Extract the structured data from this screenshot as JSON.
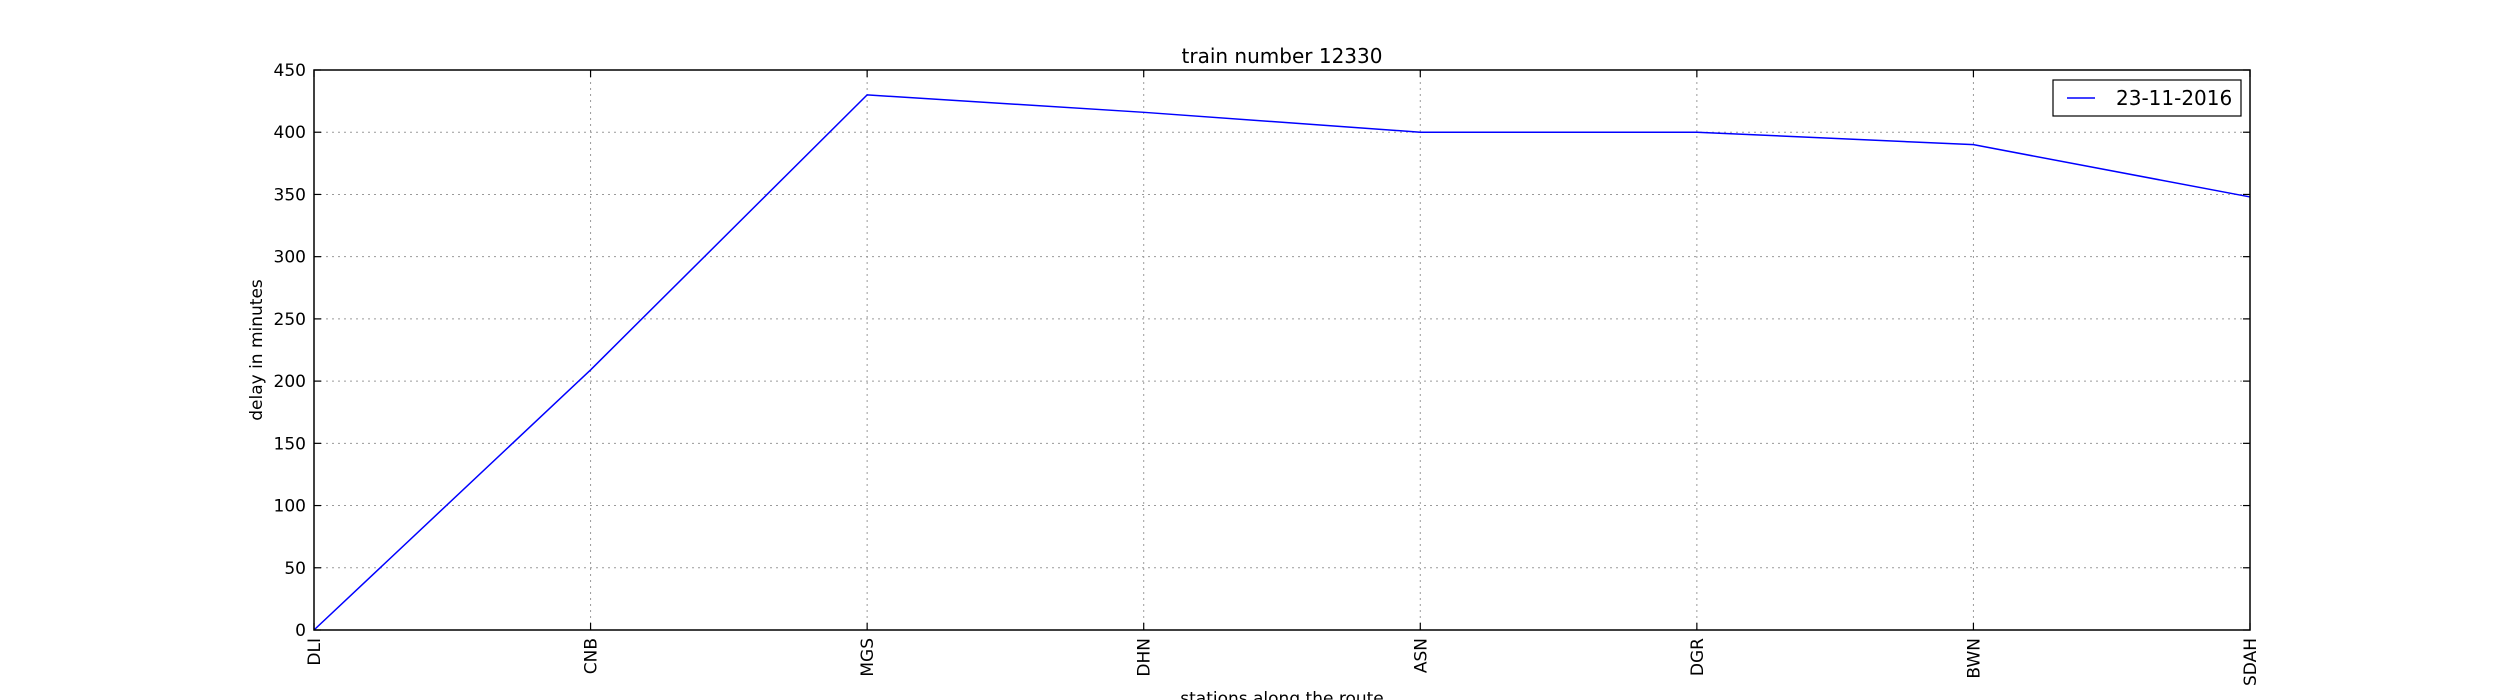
{
  "chart_data": {
    "type": "line",
    "title": "train number 12330",
    "xlabel": "stations along the route",
    "ylabel": "delay in minutes",
    "categories": [
      "DLI",
      "CNB",
      "MGS",
      "DHN",
      "ASN",
      "DGR",
      "BWN",
      "SDAH"
    ],
    "series": [
      {
        "name": "23-11-2016",
        "color": "#0000ff",
        "values": [
          0,
          209,
          430,
          416,
          400,
          400,
          390,
          348
        ]
      }
    ],
    "yticks": [
      0,
      50,
      100,
      150,
      200,
      250,
      300,
      350,
      400,
      450
    ],
    "ylim": [
      0,
      450
    ],
    "grid": true,
    "legend_position": "top-right"
  }
}
